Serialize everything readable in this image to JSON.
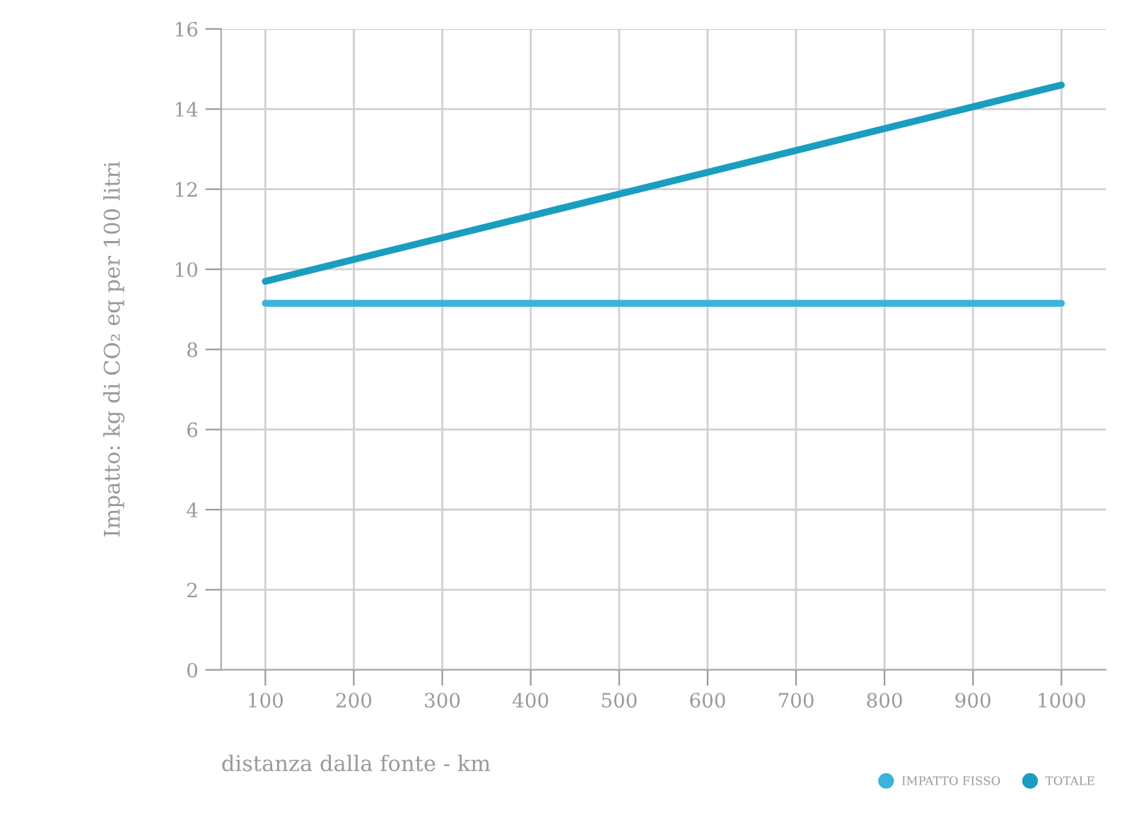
{
  "chart_data": {
    "type": "line",
    "xlabel": "distanza dalla fonte - km",
    "ylabel": "Impatto: kg di CO₂ eq per 100 litri",
    "x": [
      100,
      1000
    ],
    "series": [
      {
        "name": "IMPATTO FISSO",
        "color": "#3ab4dc",
        "values": [
          9.15,
          9.15
        ]
      },
      {
        "name": "TOTALE",
        "color": "#1a9ec0",
        "values": [
          9.7,
          14.6
        ]
      }
    ],
    "xlim": [
      50,
      1050
    ],
    "xticks": [
      100,
      200,
      300,
      400,
      500,
      600,
      700,
      800,
      900,
      1000
    ],
    "ylim": [
      0,
      16
    ],
    "yticks": [
      0,
      2,
      4,
      6,
      8,
      10,
      12,
      14,
      16
    ],
    "grid": true,
    "legend": "bottom right"
  }
}
